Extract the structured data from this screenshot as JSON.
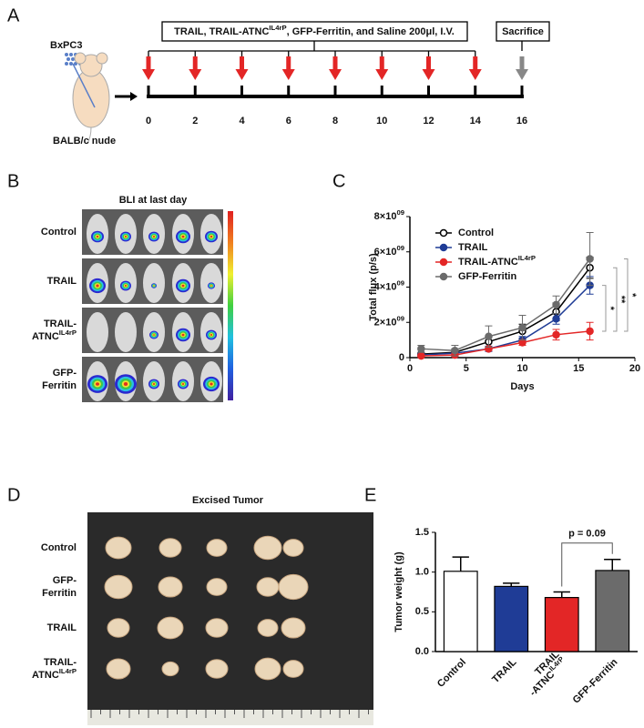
{
  "panels": {
    "a": {
      "letter": "A",
      "cell_line": "BxPC3",
      "mouse": "BALB/c nude",
      "treatment": {
        "text": "TRAIL, TRAIL-ATNC",
        "text_sup": "IL4rP",
        "text_after": ", GFP-Ferritin, and Saline 200μl, I.V."
      },
      "endpoint": "Sacrifice",
      "days": [
        0,
        2,
        4,
        6,
        8,
        10,
        12,
        14,
        16
      ]
    },
    "b": {
      "letter": "B",
      "title": "BLI at last day",
      "rows": [
        [
          {
            "text": "Control"
          }
        ],
        [
          {
            "text": "TRAIL"
          }
        ],
        [
          {
            "text": "TRAIL-"
          },
          {
            "text": "ATNC",
            "text_sup": "IL4rP"
          }
        ],
        [
          {
            "text": "GFP-"
          },
          {
            "text": "Ferritin"
          }
        ]
      ]
    },
    "c": {
      "letter": "C"
    },
    "d": {
      "letter": "D",
      "title": "Excised Tumor",
      "rows": [
        [
          {
            "text": "Control"
          }
        ],
        [
          {
            "text": "GFP-"
          },
          {
            "text": "Ferritin"
          }
        ],
        [
          {
            "text": "TRAIL"
          }
        ],
        [
          {
            "text": "TRAIL-"
          },
          {
            "text": "ATNC",
            "text_sup": "IL4rP"
          }
        ]
      ]
    },
    "e": {
      "letter": "E"
    }
  },
  "chart_data": [
    {
      "type": "line",
      "xlabel": "Days",
      "ylabel": "Total flux (p/s)",
      "x": [
        1,
        4,
        7,
        10,
        13,
        16
      ],
      "xlim": [
        0,
        20
      ],
      "xticks": [
        0,
        5,
        10,
        15,
        20
      ],
      "ylim": [
        0,
        8000000000
      ],
      "yticks": [
        0,
        {
          "value": 2000000000,
          "label": "2×10",
          "label_sup": "09"
        },
        {
          "value": 4000000000,
          "label": "4×10",
          "label_sup": "09"
        },
        {
          "value": 6000000000,
          "label": "6×10",
          "label_sup": "09"
        },
        {
          "value": 8000000000,
          "label": "8×10",
          "label_sup": "09"
        }
      ],
      "series": [
        {
          "name": "Control",
          "color": "#000000",
          "marker_fill": "#ffffff",
          "values": [
            200000000,
            300000000,
            900000000,
            1500000000,
            2600000000,
            5100000000
          ],
          "errors": [
            100000000,
            200000000,
            300000000,
            400000000,
            500000000,
            600000000
          ]
        },
        {
          "name": "TRAIL",
          "color": "#1f3c96",
          "marker_fill": "#1f3c96",
          "values": [
            150000000,
            250000000,
            500000000,
            1000000000,
            2200000000,
            4100000000
          ],
          "errors": [
            50000000,
            100000000,
            150000000,
            200000000,
            300000000,
            500000000
          ]
        },
        {
          "name": "TRAIL-ATNC",
          "name_sup": "IL4rP",
          "color": "#e32626",
          "marker_fill": "#e32626",
          "values": [
            100000000,
            150000000,
            500000000,
            850000000,
            1300000000,
            1500000000
          ],
          "errors": [
            50000000,
            100000000,
            100000000,
            150000000,
            300000000,
            500000000
          ]
        },
        {
          "name": "GFP-Ferritin",
          "color": "#6b6b6b",
          "marker_fill": "#6b6b6b",
          "values": [
            500000000,
            400000000,
            1200000000,
            1700000000,
            3000000000,
            5600000000
          ],
          "errors": [
            200000000,
            300000000,
            600000000,
            700000000,
            500000000,
            1500000000
          ]
        }
      ],
      "significance": [
        "*",
        "**",
        "*"
      ]
    },
    {
      "type": "bar",
      "ylabel": "Tumor weight (g)",
      "categories": [
        [
          {
            "text": "Control"
          }
        ],
        [
          {
            "text": "TRAIL"
          }
        ],
        [
          {
            "text": "TRAIL"
          },
          {
            "text": "-ATNC",
            "text_sup": "IL4rP"
          }
        ],
        [
          {
            "text": "GFP-Ferritin"
          }
        ]
      ],
      "values": [
        1.01,
        0.82,
        0.68,
        1.02
      ],
      "errors": [
        0.18,
        0.04,
        0.07,
        0.14
      ],
      "colors": [
        "#ffffff",
        "#1f3c96",
        "#e32626",
        "#6b6b6b"
      ],
      "ylim": [
        0,
        1.5
      ],
      "yticks": [
        {
          "value": 0,
          "label": "0.0"
        },
        0.5,
        {
          "value": 1,
          "label": "1.0"
        },
        {
          "value": 1.5,
          "label": "1.5"
        }
      ],
      "annotation": "p = 0.09"
    }
  ]
}
